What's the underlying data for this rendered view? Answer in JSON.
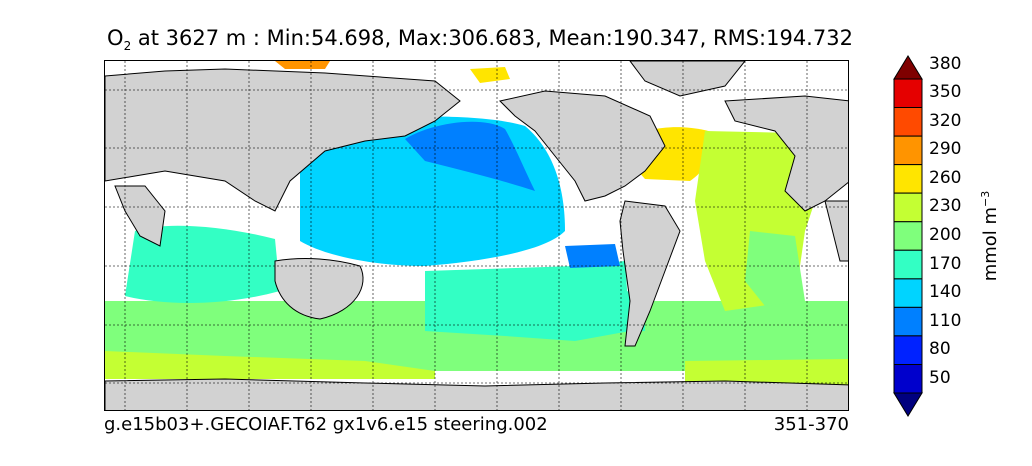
{
  "title": {
    "variable_main": "O",
    "variable_sub": "2",
    "rest": " at 3627 m : Min:54.698, Max:306.683, Mean:190.347, RMS:194.732"
  },
  "footer": {
    "left": "g.e15b03+.GECOIAF.T62 gx1v6.e15 steering.002",
    "right": "351-370"
  },
  "colorbar": {
    "unit_main": "mmol m",
    "unit_sup": "−3",
    "ticks": [
      "50",
      "80",
      "110",
      "140",
      "170",
      "200",
      "230",
      "260",
      "290",
      "320",
      "350",
      "380"
    ],
    "colors": [
      "#00007f",
      "#0000cc",
      "#0022ff",
      "#0080ff",
      "#00d4ff",
      "#33ffc4",
      "#7fff7c",
      "#c4ff33",
      "#ffe500",
      "#ff9400",
      "#ff4a00",
      "#e50000",
      "#7f0000"
    ]
  },
  "map": {
    "land_color": "#d2d2d2",
    "missing_color": "#ffffff"
  }
}
